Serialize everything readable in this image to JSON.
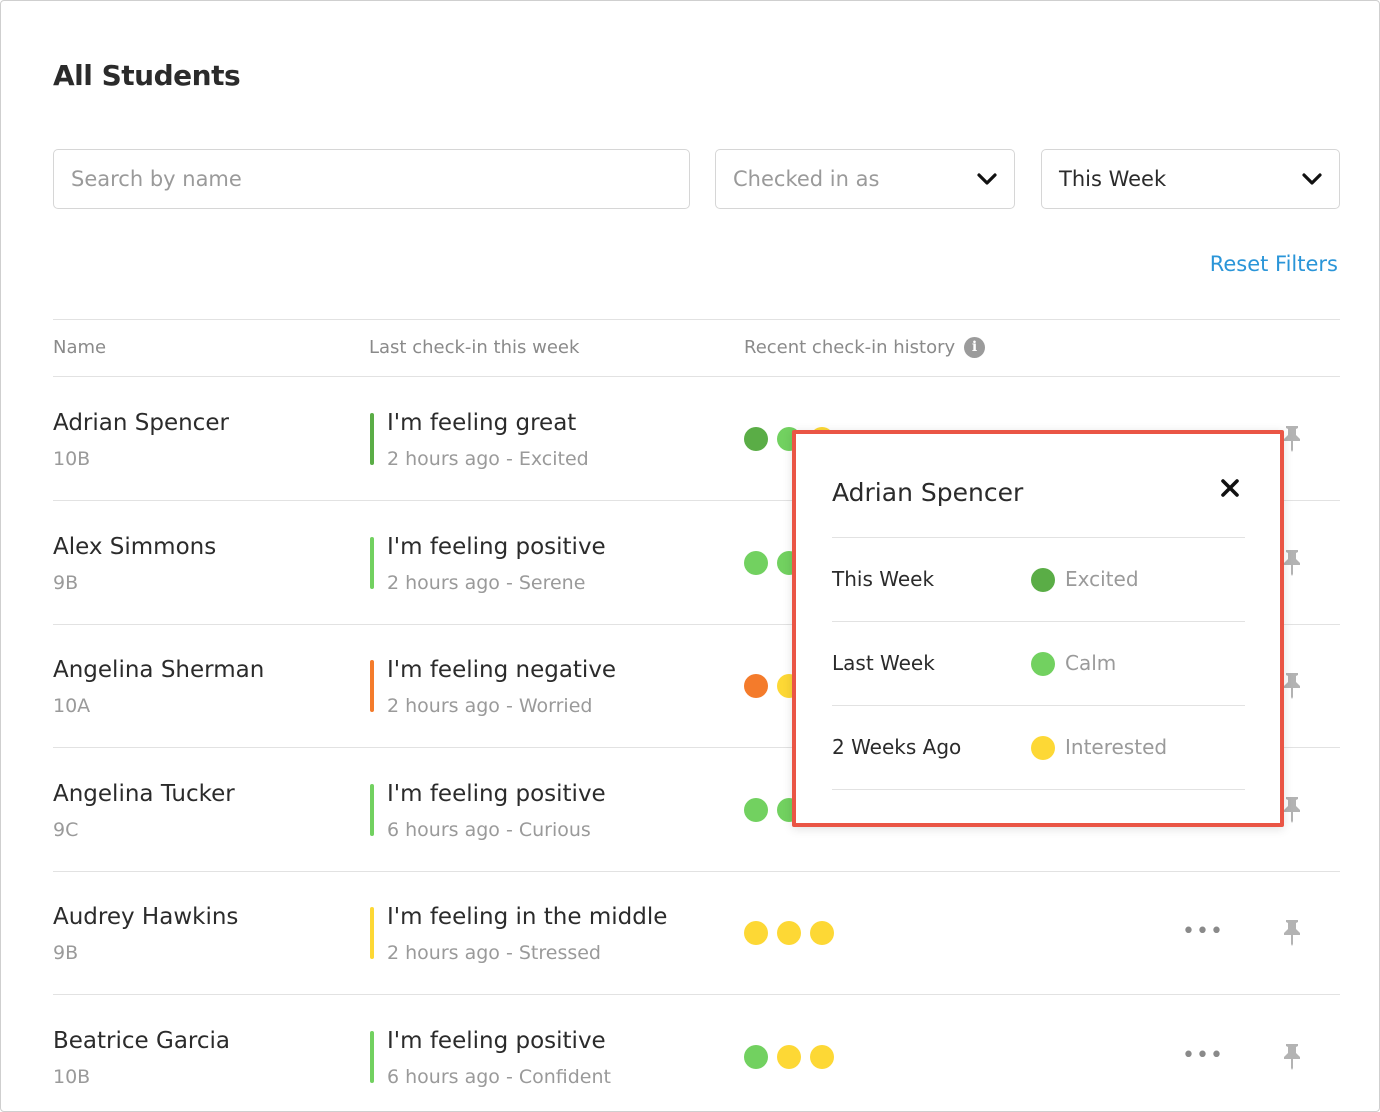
{
  "page": {
    "title": "All Students"
  },
  "filters": {
    "search_placeholder": "Search by name",
    "checked_in_as": "Checked in as",
    "period": "This Week",
    "reset_label": "Reset Filters"
  },
  "table": {
    "headers": {
      "name": "Name",
      "last_checkin": "Last check-in this week",
      "history": "Recent check-in history"
    },
    "rows": [
      {
        "name": "Adrian Spencer",
        "class": "10B",
        "feeling": "I'm feeling great",
        "detail": "2 hours ago - Excited",
        "bar_color": "#5aad46",
        "history_colors": [
          "#5aad46",
          "#72d160",
          "#fdd835"
        ]
      },
      {
        "name": "Alex Simmons",
        "class": "9B",
        "feeling": "I'm feeling positive",
        "detail": "2 hours ago - Serene",
        "bar_color": "#72d160",
        "history_colors": [
          "#72d160",
          "#72d160",
          "#72d160"
        ]
      },
      {
        "name": "Angelina Sherman",
        "class": "10A",
        "feeling": "I'm feeling negative",
        "detail": "2 hours ago - Worried",
        "bar_color": "#f47b2b",
        "history_colors": [
          "#f47b2b",
          "#fdd835",
          "#fdd835"
        ]
      },
      {
        "name": "Angelina Tucker",
        "class": "9C",
        "feeling": "I'm feeling positive",
        "detail": "6 hours ago - Curious",
        "bar_color": "#72d160",
        "history_colors": [
          "#72d160",
          "#72d160",
          "#72d160"
        ]
      },
      {
        "name": "Audrey Hawkins",
        "class": "9B",
        "feeling": "I'm feeling in the middle",
        "detail": "2 hours ago - Stressed",
        "bar_color": "#fdd835",
        "history_colors": [
          "#fdd835",
          "#fdd835",
          "#fdd835"
        ]
      },
      {
        "name": "Beatrice Garcia",
        "class": "10B",
        "feeling": "I'm feeling positive",
        "detail": "6 hours ago - Confident",
        "bar_color": "#72d160",
        "history_colors": [
          "#72d160",
          "#fdd835",
          "#fdd835"
        ]
      }
    ],
    "more_label": "•••"
  },
  "popup": {
    "title": "Adrian Spencer",
    "entries": [
      {
        "period": "This Week",
        "mood": "Excited",
        "color": "#5aad46"
      },
      {
        "period": "Last Week",
        "mood": "Calm",
        "color": "#72d160"
      },
      {
        "period": "2 Weeks Ago",
        "mood": "Interested",
        "color": "#fdd835"
      }
    ]
  },
  "colors": {
    "accent": "#2a95d8",
    "popup_border": "#ea5545"
  }
}
